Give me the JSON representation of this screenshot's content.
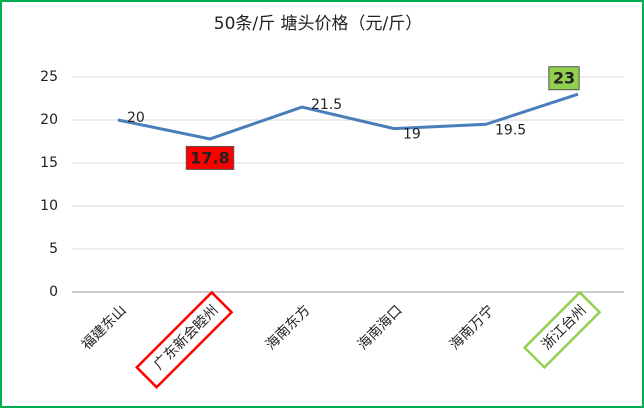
{
  "chart_data": {
    "type": "line",
    "title": "50条/斤  塘头价格（元/斤）",
    "categories": [
      "福建东山",
      "广东新会睦州",
      "海南东方",
      "海南海口",
      "海南万宁",
      "浙江台州"
    ],
    "series": [
      {
        "name": "塘头价格",
        "color": "#4a7ebb",
        "values": [
          20,
          17.8,
          21.5,
          19,
          19.5,
          23
        ]
      }
    ],
    "ylim": [
      0,
      25
    ],
    "yticks": [
      0,
      5,
      10,
      15,
      20,
      25
    ],
    "grid": true,
    "highlights": [
      {
        "index": 1,
        "color": "#ff0000"
      },
      {
        "index": 5,
        "color": "#92d050"
      }
    ]
  }
}
